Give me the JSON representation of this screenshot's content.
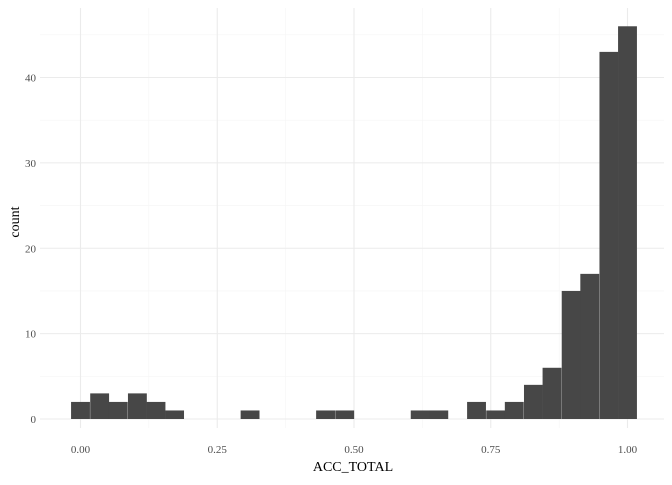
{
  "chart_data": {
    "type": "bar",
    "subtype": "histogram",
    "xlabel": "ACC_TOTAL",
    "ylabel": "count",
    "xlim": [
      -0.05,
      1.05
    ],
    "ylim": [
      0,
      47
    ],
    "x_ticks": [
      0.0,
      0.25,
      0.5,
      0.75,
      1.0
    ],
    "x_tick_labels": [
      "0.00",
      "0.25",
      "0.50",
      "0.75",
      "1.00"
    ],
    "y_ticks": [
      0,
      10,
      20,
      30,
      40
    ],
    "y_tick_labels": [
      "0",
      "10",
      "20",
      "30",
      "40"
    ],
    "bin_width": 0.0345,
    "bins": [
      {
        "x": 0.0,
        "count": 2
      },
      {
        "x": 0.035,
        "count": 3
      },
      {
        "x": 0.069,
        "count": 2
      },
      {
        "x": 0.104,
        "count": 3
      },
      {
        "x": 0.138,
        "count": 2
      },
      {
        "x": 0.172,
        "count": 1
      },
      {
        "x": 0.207,
        "count": 0
      },
      {
        "x": 0.242,
        "count": 0
      },
      {
        "x": 0.276,
        "count": 0
      },
      {
        "x": 0.31,
        "count": 1
      },
      {
        "x": 0.345,
        "count": 0
      },
      {
        "x": 0.38,
        "count": 0
      },
      {
        "x": 0.414,
        "count": 0
      },
      {
        "x": 0.448,
        "count": 1
      },
      {
        "x": 0.483,
        "count": 1
      },
      {
        "x": 0.517,
        "count": 0
      },
      {
        "x": 0.552,
        "count": 0
      },
      {
        "x": 0.586,
        "count": 0
      },
      {
        "x": 0.621,
        "count": 1
      },
      {
        "x": 0.655,
        "count": 1
      },
      {
        "x": 0.69,
        "count": 0
      },
      {
        "x": 0.724,
        "count": 2
      },
      {
        "x": 0.759,
        "count": 1
      },
      {
        "x": 0.793,
        "count": 2
      },
      {
        "x": 0.828,
        "count": 4
      },
      {
        "x": 0.862,
        "count": 6
      },
      {
        "x": 0.897,
        "count": 15
      },
      {
        "x": 0.931,
        "count": 17
      },
      {
        "x": 0.966,
        "count": 43
      },
      {
        "x": 1.0,
        "count": 46
      }
    ],
    "grid": true,
    "legend": "none",
    "colors": {
      "bar": "#474747",
      "grid_major": "#ebebeb",
      "grid_minor": "#f5f5f5",
      "tick_text": "#4d4d4d",
      "axis_title": "#000000"
    }
  }
}
